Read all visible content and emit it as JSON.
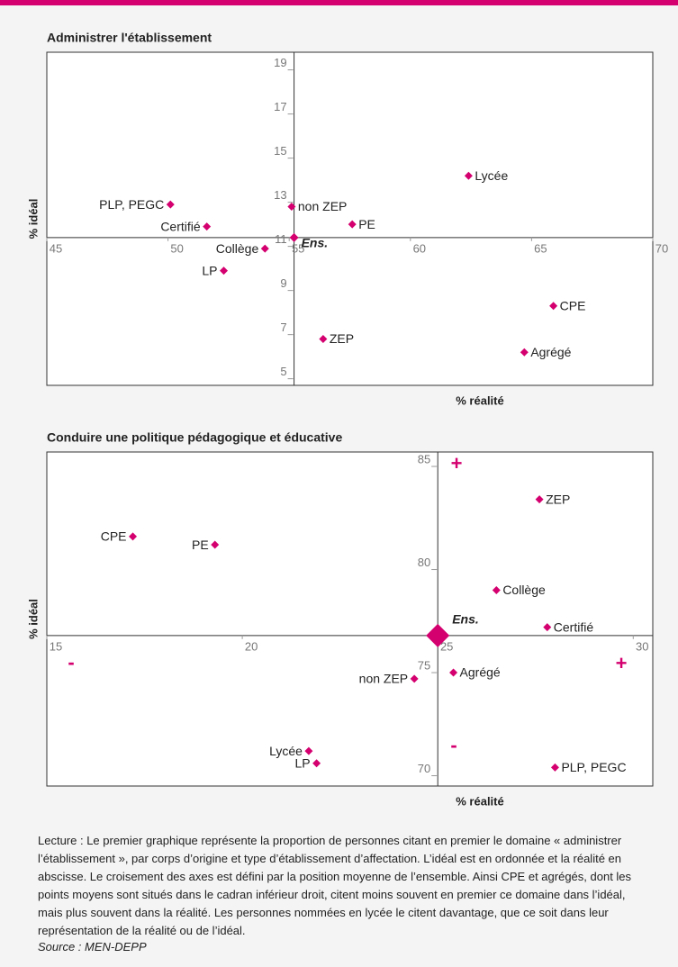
{
  "chart_data": [
    {
      "type": "scatter",
      "title": "Administrer l'établissement",
      "xlabel": "% réalité",
      "ylabel": "% idéal",
      "xlim": [
        45,
        70
      ],
      "ylim": [
        4.7,
        19.8
      ],
      "xticks": [
        45,
        50,
        55,
        60,
        65,
        70
      ],
      "yticks": [
        5,
        7,
        9,
        11,
        13,
        15,
        17,
        19
      ],
      "color": "#d4006f",
      "reference": {
        "label": "Ens.",
        "x": 55.2,
        "y": 11.4
      },
      "points": [
        {
          "label": "Lycée",
          "x": 62.4,
          "y": 14.2
        },
        {
          "label": "PLP, PEGC",
          "x": 50.1,
          "y": 12.9
        },
        {
          "label": "non ZEP",
          "x": 55.1,
          "y": 12.8
        },
        {
          "label": "PE",
          "x": 57.6,
          "y": 12.0
        },
        {
          "label": "Certifié",
          "x": 51.6,
          "y": 11.9
        },
        {
          "label": "Collège",
          "x": 54.0,
          "y": 10.9
        },
        {
          "label": "LP",
          "x": 52.3,
          "y": 9.9
        },
        {
          "label": "CPE",
          "x": 65.9,
          "y": 8.3
        },
        {
          "label": "ZEP",
          "x": 56.4,
          "y": 6.8
        },
        {
          "label": "Agrégé",
          "x": 64.7,
          "y": 6.2
        }
      ]
    },
    {
      "type": "scatter",
      "title": "Conduire une politique pédagogique et éducative",
      "xlabel": "% réalité",
      "ylabel": "% idéal",
      "xlim": [
        15,
        30.5
      ],
      "ylim": [
        69.5,
        85.7
      ],
      "xticks": [
        15,
        20,
        25,
        30
      ],
      "yticks": [
        70,
        75,
        80,
        85
      ],
      "color": "#d4006f",
      "reference": {
        "label": "Ens.",
        "x": 25.0,
        "y": 76.8
      },
      "annotations": [
        "+",
        "-",
        "+",
        "-"
      ],
      "points": [
        {
          "label": "ZEP",
          "x": 27.6,
          "y": 83.4
        },
        {
          "label": "CPE",
          "x": 17.2,
          "y": 81.6
        },
        {
          "label": "PE",
          "x": 19.3,
          "y": 81.2
        },
        {
          "label": "Collège",
          "x": 26.5,
          "y": 79.0
        },
        {
          "label": "Certifié",
          "x": 27.8,
          "y": 77.2
        },
        {
          "label": "Agrégé",
          "x": 25.4,
          "y": 75.0
        },
        {
          "label": "non ZEP",
          "x": 24.4,
          "y": 74.7
        },
        {
          "label": "Lycée",
          "x": 21.7,
          "y": 71.2
        },
        {
          "label": "LP",
          "x": 21.9,
          "y": 70.6
        },
        {
          "label": "PLP, PEGC",
          "x": 28.0,
          "y": 70.4
        }
      ]
    }
  ],
  "caption": "Lecture : Le premier graphique représente la proportion de personnes citant en premier le domaine « administrer l’établissement », par corps d’origine et type d’établissement d’affectation. L’idéal est en ordonnée et la réalité en abscisse. Le croisement des axes est défini par la position moyenne de l’ensemble. Ainsi CPE et agrégés, dont les points moyens sont situés dans le cadran inférieur droit, citent moins souvent en premier ce domaine dans l’idéal, mais plus souvent dans la réalité. Les personnes nommées en lycée le citent davantage, que ce soit dans leur représentation de la réalité ou de l’idéal.",
  "source": "Source : MEN-DEPP"
}
